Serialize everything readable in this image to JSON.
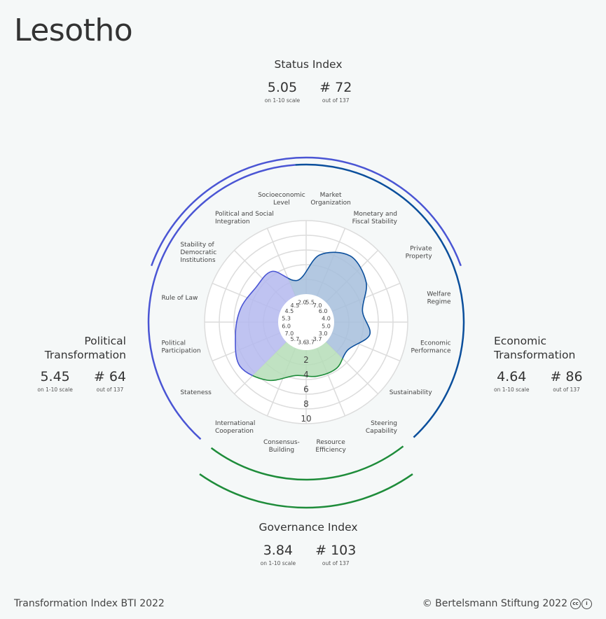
{
  "country": "Lesotho",
  "status": {
    "title": "Status Index",
    "score": "5.05",
    "score_note": "on 1-10 scale",
    "rank": "# 72",
    "rank_note": "out of 137"
  },
  "political": {
    "title_line1": "Political",
    "title_line2": "Transformation",
    "score": "5.45",
    "score_note": "on 1-10 scale",
    "rank": "# 64",
    "rank_note": "out of 137"
  },
  "economic": {
    "title_line1": "Economic",
    "title_line2": "Transformation",
    "score": "4.64",
    "score_note": "on 1-10 scale",
    "rank": "# 86",
    "rank_note": "out of 137"
  },
  "governance": {
    "title": "Governance Index",
    "score": "3.84",
    "score_note": "on 1-10 scale",
    "rank": "# 103",
    "rank_note": "out of 137"
  },
  "footer": {
    "left": "Transformation Index BTI 2022",
    "right": "© Bertelsmann Stiftung 2022",
    "cc_icon": "cc-by-icon"
  },
  "colors": {
    "political": "#4a55d4",
    "economic": "#0b4f9c",
    "governance": "#1e8c3a",
    "political_fill": "#b4b8ef",
    "economic_fill": "#a6bedc",
    "governance_fill": "#b5ddb7"
  },
  "chart_data": {
    "type": "radar",
    "scale_labels": [
      "2",
      "4",
      "6",
      "8",
      "10"
    ],
    "range": [
      0,
      10
    ],
    "categories": [
      {
        "label": [
          "Market",
          "Organization"
        ],
        "value": 5.5,
        "value_label": "5.5",
        "group": "economic"
      },
      {
        "label": [
          "Monetary and",
          "Fiscal Stability"
        ],
        "value": 7.0,
        "value_label": "7.0",
        "group": "economic"
      },
      {
        "label": [
          "Private",
          "Property"
        ],
        "value": 6.0,
        "value_label": "6.0",
        "group": "economic"
      },
      {
        "label": [
          "Welfare",
          "Regime"
        ],
        "value": 4.0,
        "value_label": "4.0",
        "group": "economic"
      },
      {
        "label": [
          "Economic",
          "Performance"
        ],
        "value": 5.0,
        "value_label": "5.0",
        "group": "economic"
      },
      {
        "label": [
          "Sustainability"
        ],
        "value": 3.0,
        "value_label": "3.0",
        "group": "economic"
      },
      {
        "label": [
          "Steering",
          "Capability"
        ],
        "value": 3.7,
        "value_label": "3.7",
        "group": "governance"
      },
      {
        "label": [
          "Resource",
          "Efficiency"
        ],
        "value": 3.7,
        "value_label": "3.7",
        "group": "governance"
      },
      {
        "label": [
          "Consensus-",
          "Building"
        ],
        "value": 3.6,
        "value_label": "3.6",
        "group": "governance"
      },
      {
        "label": [
          "International",
          "Cooperation"
        ],
        "value": 5.7,
        "value_label": "5.7",
        "group": "governance"
      },
      {
        "label": [
          "Stateness"
        ],
        "value": 7.0,
        "value_label": "7.0",
        "group": "political"
      },
      {
        "label": [
          "Political",
          "Participation"
        ],
        "value": 6.0,
        "value_label": "6.0",
        "group": "political"
      },
      {
        "label": [
          "Rule of Law"
        ],
        "value": 5.3,
        "value_label": "5.3",
        "group": "political"
      },
      {
        "label": [
          "Stability of",
          "Democratic",
          "Institutions"
        ],
        "value": 4.5,
        "value_label": "4.5",
        "group": "political"
      },
      {
        "label": [
          "Political and Social",
          "Integration"
        ],
        "value": 4.5,
        "value_label": "4.5",
        "group": "political"
      },
      {
        "label": [
          "Socioeconomic",
          "Level"
        ],
        "value": 2.0,
        "value_label": "2.0",
        "group": "economic"
      }
    ]
  }
}
